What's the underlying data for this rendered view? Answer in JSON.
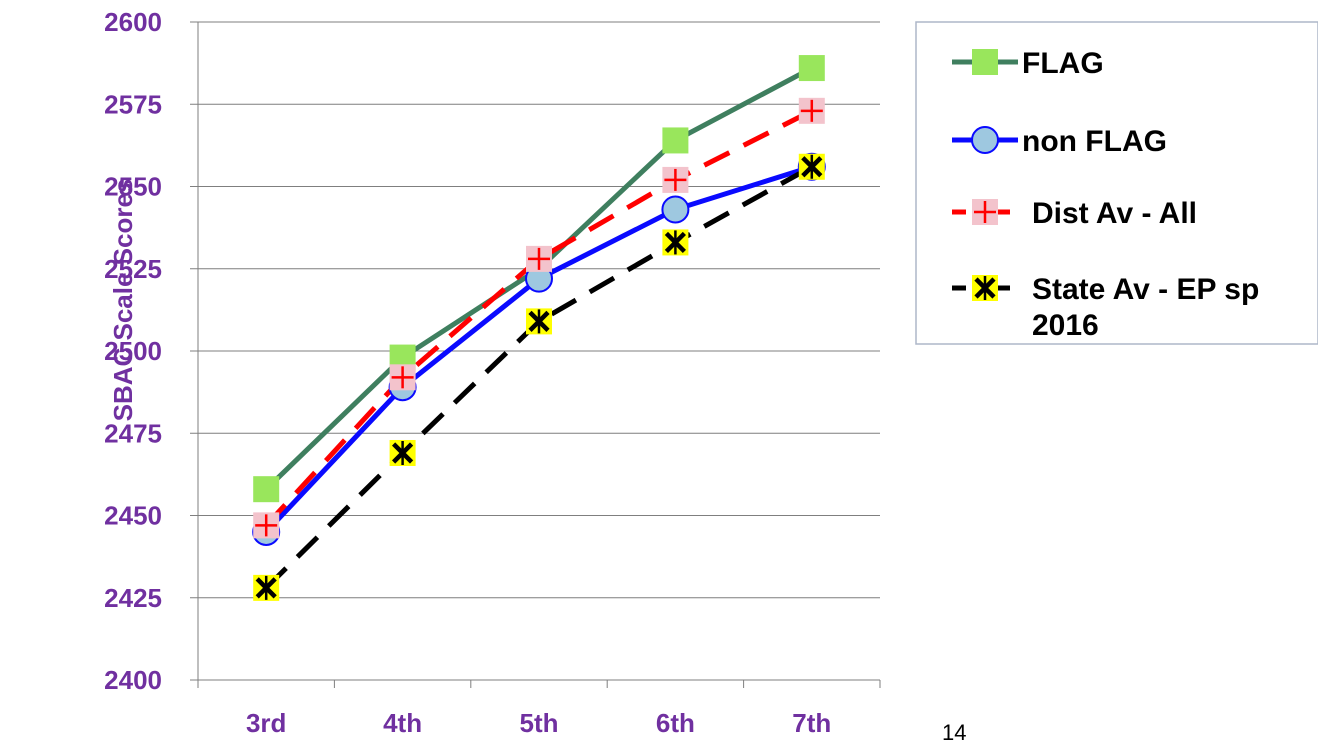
{
  "page": {
    "page_number": "14"
  },
  "chart_data": {
    "type": "line",
    "title": "",
    "xlabel": "",
    "ylabel": "SBAC Scale Scores",
    "categories": [
      "3rd",
      "4th",
      "5th",
      "6th",
      "7th"
    ],
    "ylim": [
      2400,
      2600
    ],
    "yticks": [
      2400,
      2425,
      2450,
      2475,
      2500,
      2525,
      2550,
      2575,
      2600
    ],
    "grid": "horizontal",
    "legend_position": "right",
    "series": [
      {
        "name": "FLAG",
        "values": [
          2458,
          2498,
          2525,
          2564,
          2586
        ],
        "color": "#3f7f5f",
        "marker": "square",
        "marker_color": "#99e65c",
        "line_style": "solid"
      },
      {
        "name": "non FLAG",
        "values": [
          2445,
          2489,
          2522,
          2543,
          2556
        ],
        "color": "#0a0aff",
        "marker": "circle",
        "marker_color": "#9ec8e0",
        "line_style": "solid"
      },
      {
        "name": "Dist Av - All",
        "values": [
          2447,
          2492,
          2528,
          2552,
          2573
        ],
        "color": "#ff0000",
        "marker": "plus",
        "marker_color": "#f3c3cc",
        "line_style": "dashed"
      },
      {
        "name": "State Av - EP sp 2016",
        "values": [
          2428,
          2469,
          2509,
          2533,
          2556
        ],
        "color": "#000000",
        "marker": "star",
        "marker_color": "#ffff00",
        "line_style": "dashed"
      }
    ]
  }
}
